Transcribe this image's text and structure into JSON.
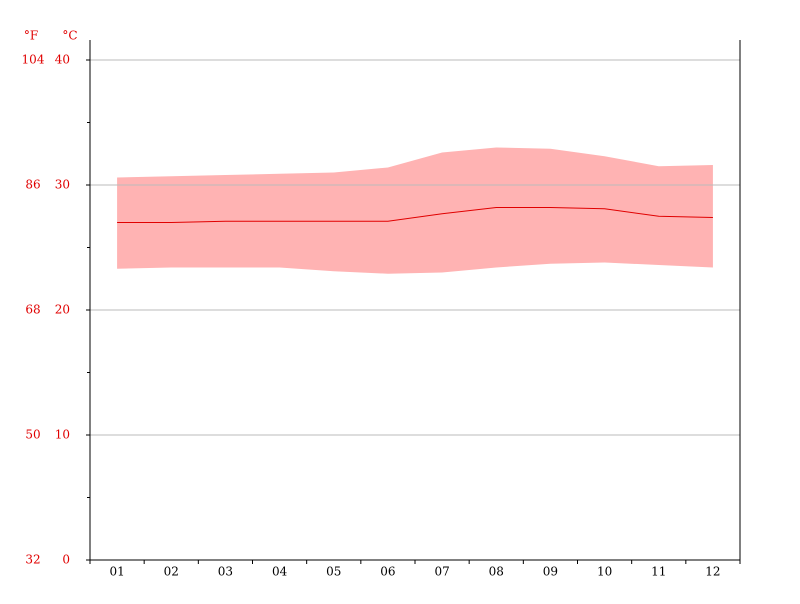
{
  "chart_data": {
    "type": "range-line",
    "y_label": "°C",
    "y2_label": "°F",
    "categories": [
      "01",
      "02",
      "03",
      "04",
      "05",
      "06",
      "07",
      "08",
      "09",
      "10",
      "11",
      "12"
    ],
    "mean": [
      27.0,
      27.0,
      27.1,
      27.1,
      27.1,
      27.1,
      27.7,
      28.2,
      28.2,
      28.1,
      27.5,
      27.4
    ],
    "high": [
      30.6,
      30.7,
      30.8,
      30.9,
      31.0,
      31.4,
      32.6,
      33.0,
      32.9,
      32.3,
      31.5,
      31.6
    ],
    "low": [
      23.3,
      23.4,
      23.4,
      23.4,
      23.1,
      22.9,
      23.0,
      23.4,
      23.7,
      23.8,
      23.6,
      23.4
    ],
    "line_color": "#e00000",
    "range_color": "#ffb3b3",
    "tick_label_color": "#e00000",
    "ylim": [
      0,
      40
    ],
    "yticks": [
      0,
      10,
      20,
      30,
      40
    ],
    "yminorticks": [
      5,
      15,
      25,
      35
    ],
    "y2lim": [
      32,
      104
    ],
    "y2ticks": [
      32,
      50,
      68,
      86,
      104
    ],
    "grid": true
  }
}
